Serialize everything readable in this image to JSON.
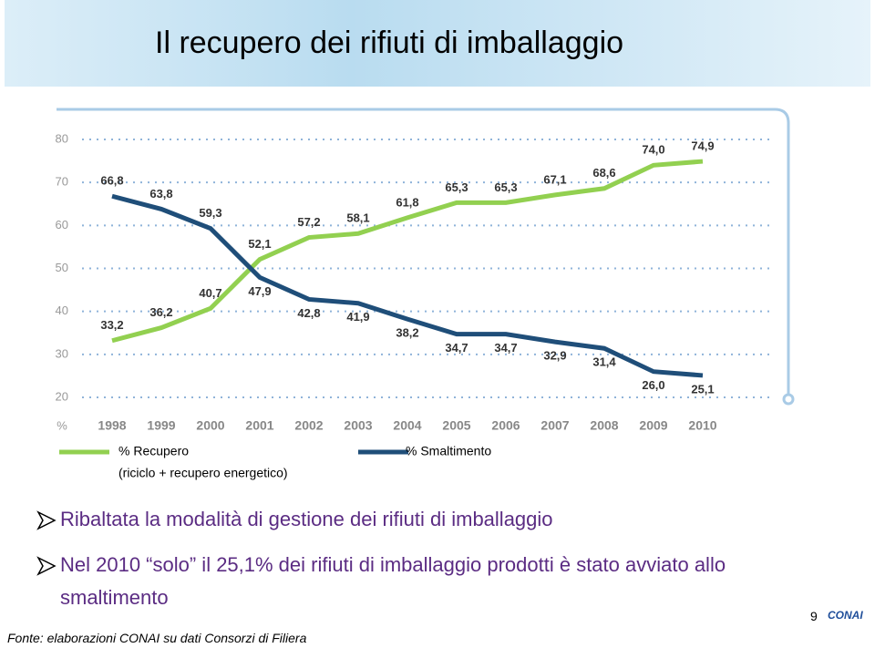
{
  "header": {
    "title": "Il recupero dei rifiuti di imballaggio"
  },
  "chart_data": {
    "type": "line",
    "x_unit_label": "%",
    "categories": [
      "1998",
      "1999",
      "2000",
      "2001",
      "2002",
      "2003",
      "2004",
      "2005",
      "2006",
      "2007",
      "2008",
      "2009",
      "2010"
    ],
    "series": [
      {
        "name": "% Recupero",
        "legend_note": "(riciclo + recupero energetico)",
        "color": "#92d050",
        "values": [
          33.2,
          36.2,
          40.7,
          52.1,
          57.2,
          58.1,
          61.8,
          65.3,
          65.3,
          67.1,
          68.6,
          74.0,
          74.9
        ],
        "value_labels": [
          "33,2",
          "36,2",
          "40,7",
          "52,1",
          "57,2",
          "58,1",
          "61,8",
          "65,3",
          "65,3",
          "67,1",
          "68,6",
          "74,0",
          "74,9"
        ]
      },
      {
        "name": "% Smaltimento",
        "color": "#1f4e79",
        "values": [
          66.8,
          63.8,
          59.3,
          47.9,
          42.8,
          41.9,
          38.2,
          34.7,
          34.7,
          32.9,
          31.4,
          26.0,
          25.1
        ],
        "value_labels": [
          "66,8",
          "63,8",
          "59,3",
          "47,9",
          "42,8",
          "41,9",
          "38,2",
          "34,7",
          "34,7",
          "32,9",
          "31,4",
          "26,0",
          "25,1"
        ]
      }
    ],
    "ylim": [
      20,
      80
    ],
    "yticks": [
      20,
      30,
      40,
      50,
      60,
      70,
      80
    ],
    "grid": true
  },
  "bullets": [
    "Ribaltata la modalità di gestione dei rifiuti di imballaggio",
    "Nel 2010 “solo” il 25,1% dei rifiuti di imballaggio prodotti è stato avviato allo smaltimento"
  ],
  "footer": {
    "source": "Fonte: elaborazioni CONAI su dati Consorzi di Filiera",
    "page": "9",
    "logo": "CONAI"
  }
}
